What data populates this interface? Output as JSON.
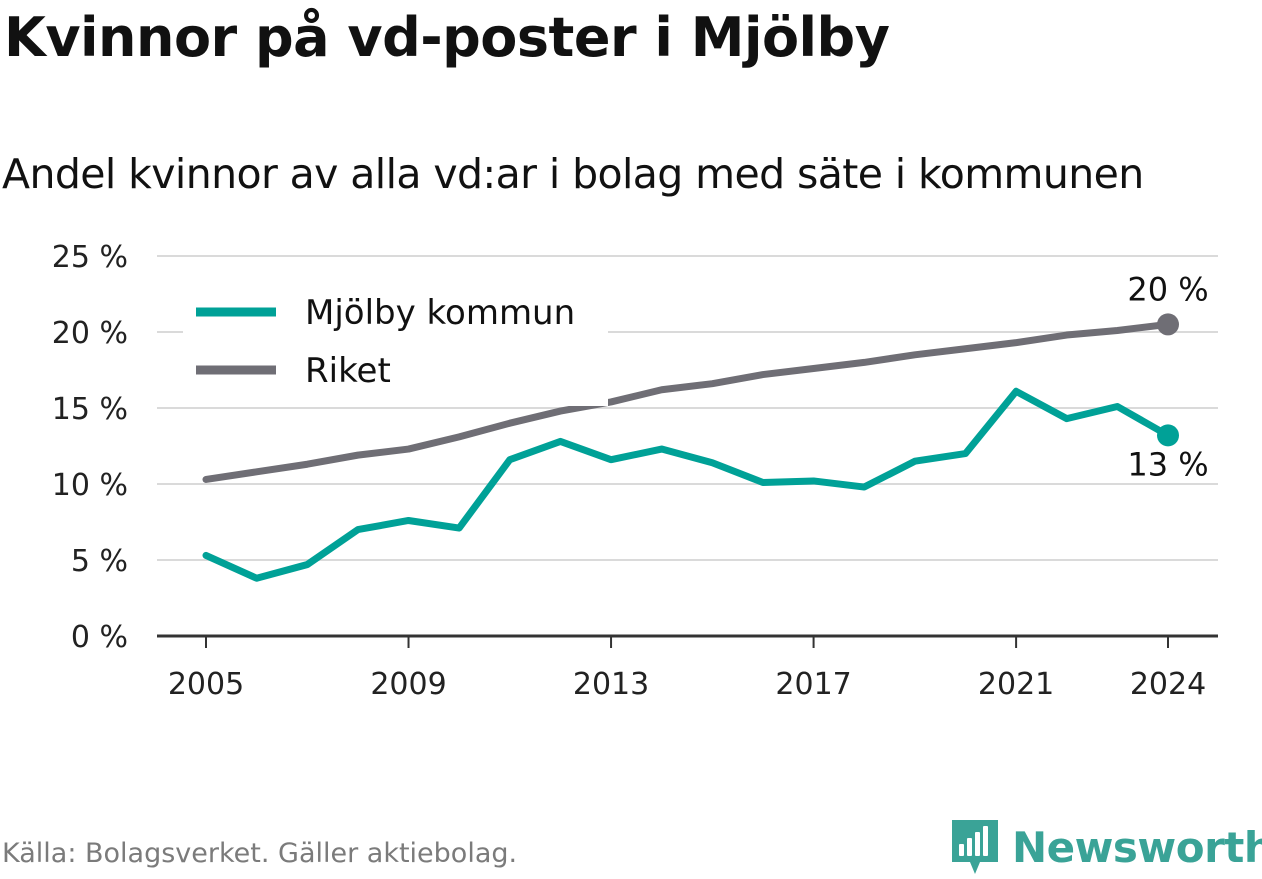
{
  "title": "Kvinnor på vd-poster i Mjölby",
  "subtitle": "Andel kvinnor av alla vd:ar i bolag med säte i kommunen",
  "source": "Källa: Bolagsverket. Gäller aktiebolag.",
  "brand": {
    "name": "Newsworthy",
    "icon": "newsworthy-logo-icon",
    "color": "#3aa397"
  },
  "chart_data": {
    "type": "line",
    "x": [
      2005,
      2006,
      2007,
      2008,
      2009,
      2010,
      2011,
      2012,
      2013,
      2014,
      2015,
      2016,
      2017,
      2018,
      2019,
      2020,
      2021,
      2022,
      2023,
      2024
    ],
    "x_ticks": [
      2005,
      2009,
      2013,
      2017,
      2021,
      2024
    ],
    "y_ticks": [
      0,
      5,
      10,
      15,
      20,
      25
    ],
    "y_tick_labels": [
      "0 %",
      "5 %",
      "10 %",
      "15 %",
      "20 %",
      "25 %"
    ],
    "ylim": [
      0,
      25
    ],
    "xlabel": "",
    "ylabel": "",
    "grid": "horizontal",
    "legend": "top-left",
    "series": [
      {
        "name": "Mjölby kommun",
        "color": "#00a197",
        "values": [
          5.3,
          3.8,
          4.7,
          7.0,
          7.6,
          7.1,
          11.6,
          12.8,
          11.6,
          12.3,
          11.4,
          10.1,
          10.2,
          9.8,
          11.5,
          12.0,
          16.1,
          14.3,
          15.1,
          13.2
        ],
        "end_label": "13 %"
      },
      {
        "name": "Riket",
        "color": "#6f6e75",
        "values": [
          10.3,
          10.8,
          11.3,
          11.9,
          12.3,
          13.1,
          14.0,
          14.8,
          15.4,
          16.2,
          16.6,
          17.2,
          17.6,
          18.0,
          18.5,
          18.9,
          19.3,
          19.8,
          20.1,
          20.5
        ],
        "end_label": "20 %"
      }
    ]
  }
}
